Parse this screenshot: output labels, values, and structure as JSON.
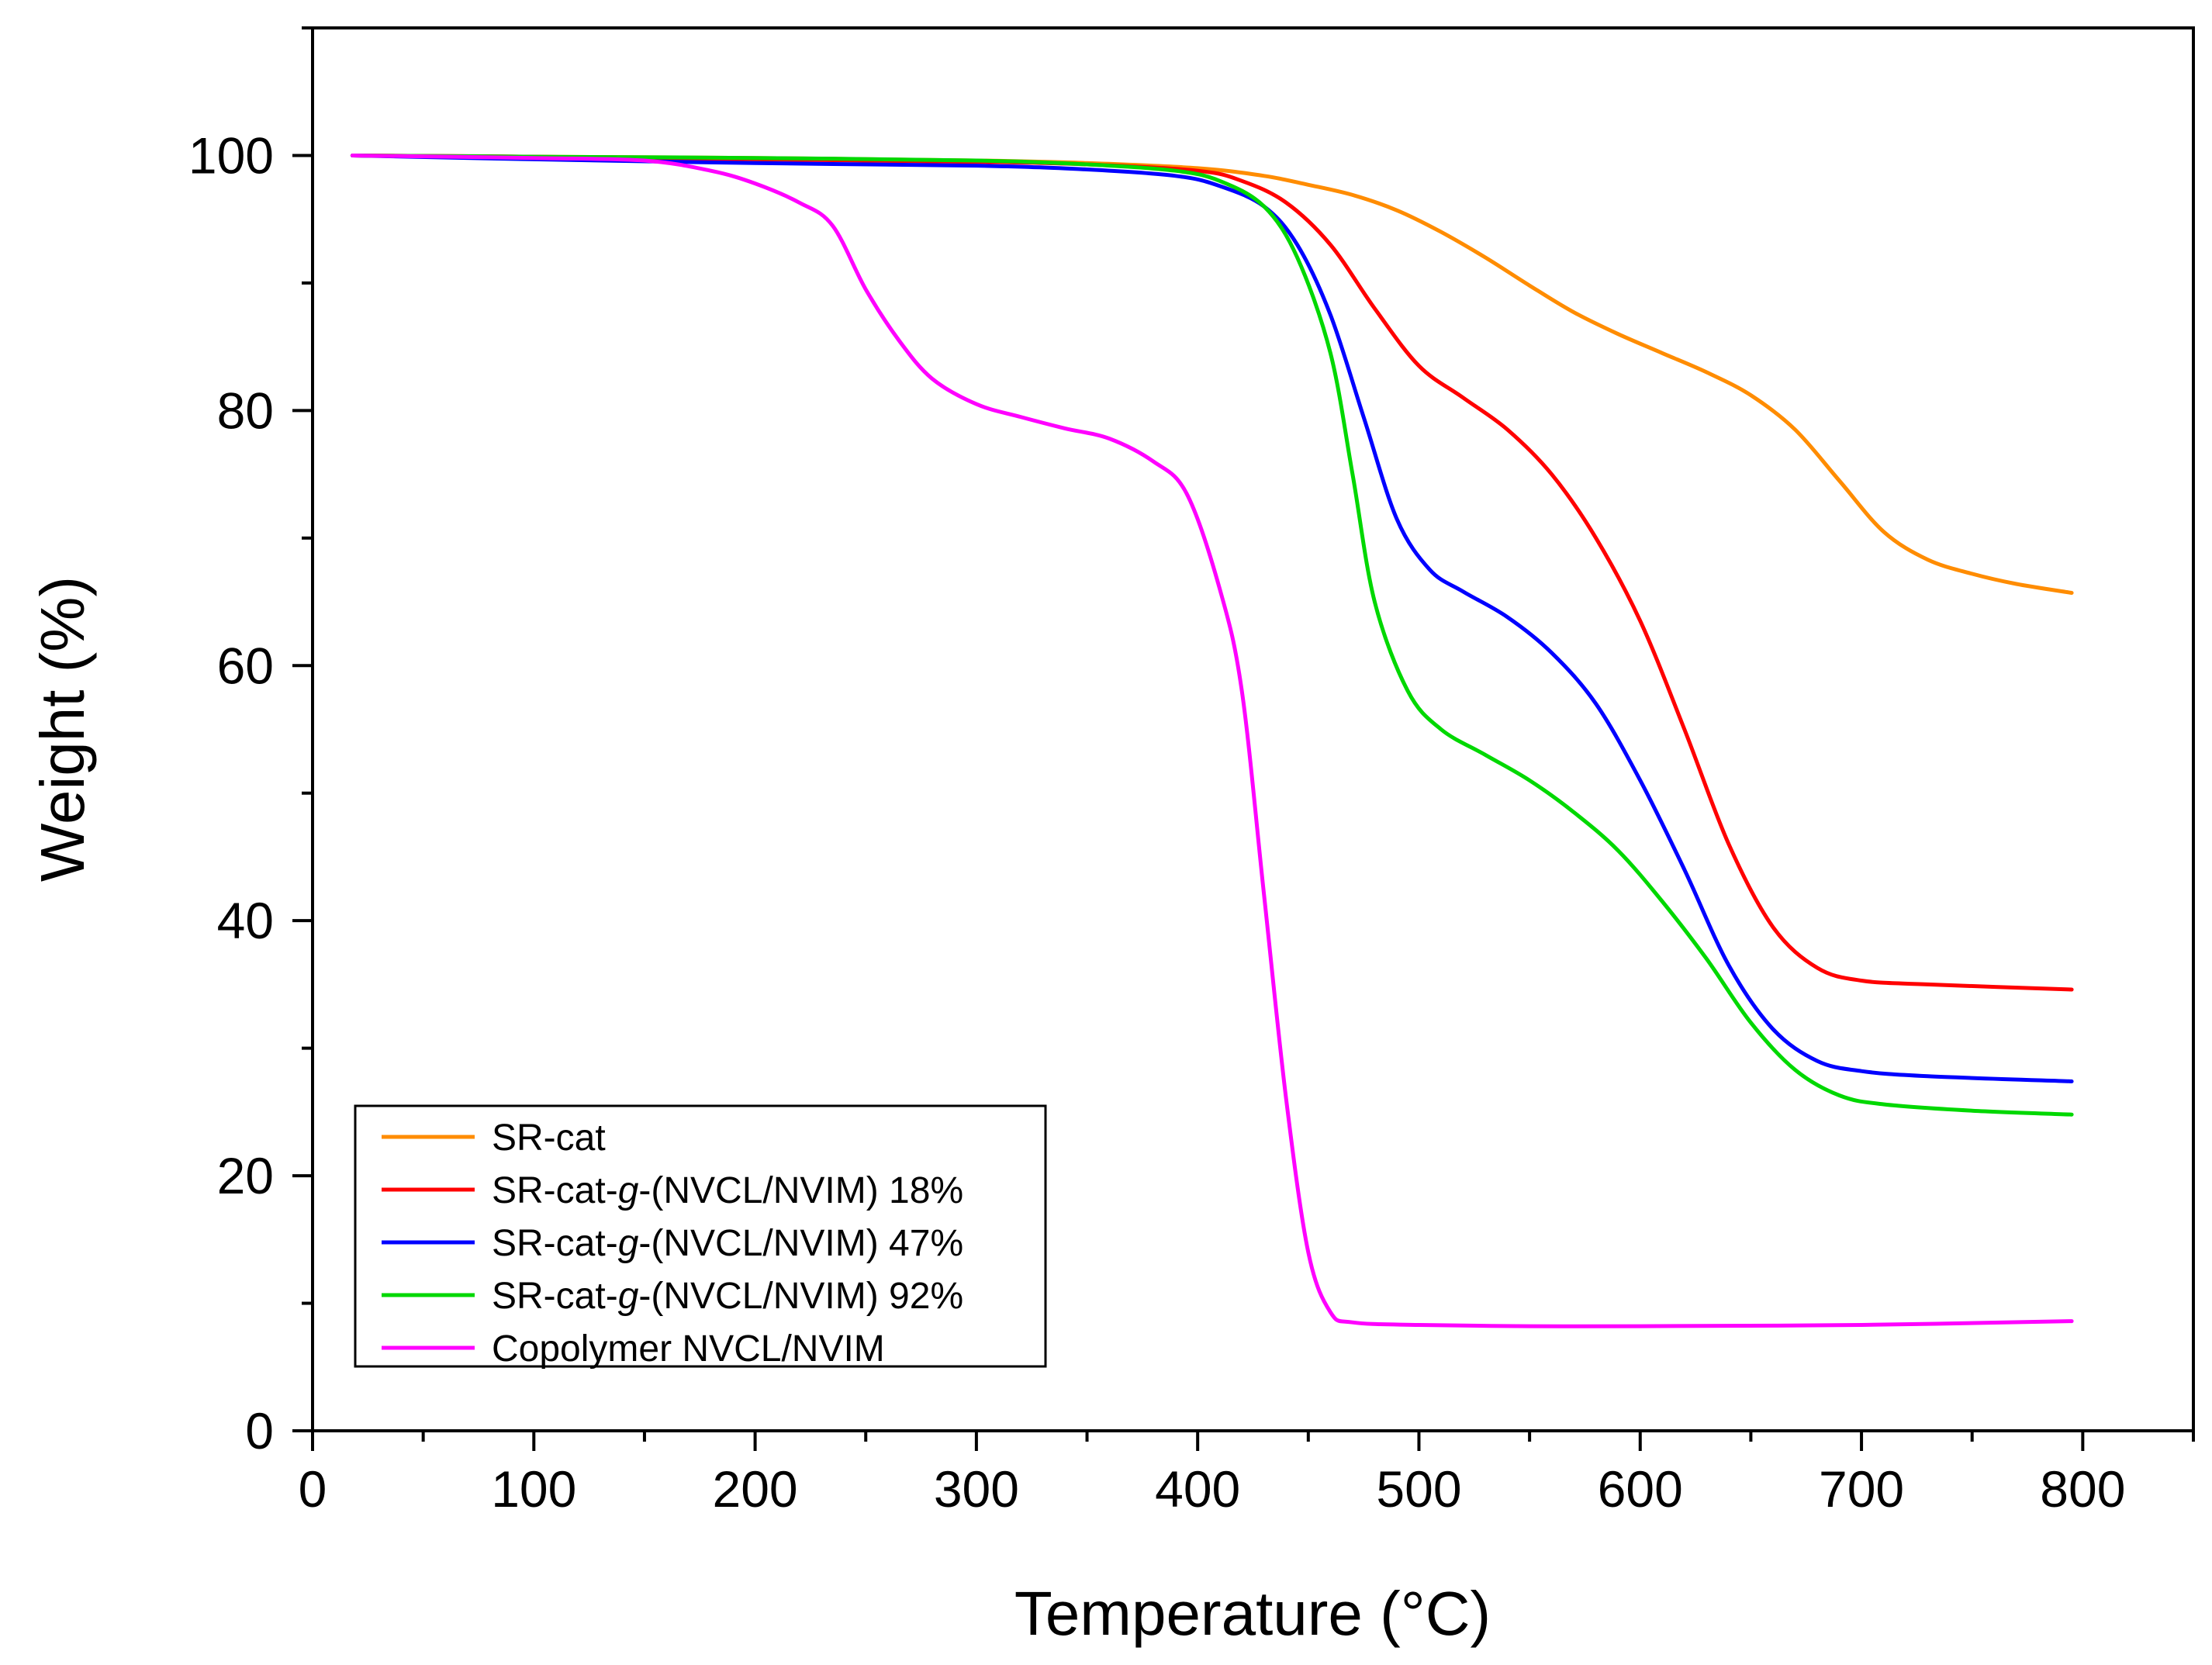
{
  "chart_data": {
    "type": "line",
    "title": "",
    "xlabel": "Temperature (°C)",
    "ylabel": "Weight (%)",
    "xlim": [
      0,
      850
    ],
    "ylim": [
      0,
      110
    ],
    "x_ticks": [
      0,
      100,
      200,
      300,
      400,
      500,
      600,
      700,
      800
    ],
    "y_ticks": [
      0,
      20,
      40,
      60,
      80,
      100
    ],
    "x_minor_step": 50,
    "y_minor_step": 10,
    "grid": false,
    "legend_position": "bottom-left",
    "series": [
      {
        "name": "SR-cat",
        "label_parts": [
          {
            "text": "SR-cat",
            "italic": false
          }
        ],
        "color": "#ff8c00",
        "points": [
          [
            18,
            100
          ],
          [
            100,
            99.9
          ],
          [
            200,
            99.8
          ],
          [
            300,
            99.6
          ],
          [
            350,
            99.4
          ],
          [
            400,
            99.0
          ],
          [
            430,
            98.4
          ],
          [
            450,
            97.7
          ],
          [
            470,
            96.9
          ],
          [
            490,
            95.7
          ],
          [
            510,
            94.0
          ],
          [
            530,
            92.0
          ],
          [
            550,
            89.8
          ],
          [
            570,
            87.7
          ],
          [
            590,
            86.0
          ],
          [
            610,
            84.5
          ],
          [
            630,
            83.0
          ],
          [
            650,
            81.2
          ],
          [
            670,
            78.5
          ],
          [
            690,
            74.5
          ],
          [
            710,
            70.5
          ],
          [
            730,
            68.3
          ],
          [
            750,
            67.2
          ],
          [
            770,
            66.4
          ],
          [
            795,
            65.7
          ]
        ]
      },
      {
        "name": "SR-cat-g-(NVCL/NVIM) 18%",
        "label_parts": [
          {
            "text": "SR-cat-",
            "italic": false
          },
          {
            "text": "g",
            "italic": true
          },
          {
            "text": "-(NVCL/NVIM) 18%",
            "italic": false
          }
        ],
        "color": "#ff0000",
        "points": [
          [
            18,
            100
          ],
          [
            100,
            99.9
          ],
          [
            200,
            99.7
          ],
          [
            300,
            99.5
          ],
          [
            350,
            99.3
          ],
          [
            400,
            98.8
          ],
          [
            420,
            98.0
          ],
          [
            440,
            96.3
          ],
          [
            460,
            93.0
          ],
          [
            480,
            88.0
          ],
          [
            500,
            83.5
          ],
          [
            520,
            81.0
          ],
          [
            540,
            78.5
          ],
          [
            560,
            75.0
          ],
          [
            580,
            70.0
          ],
          [
            600,
            63.5
          ],
          [
            620,
            55.0
          ],
          [
            640,
            46.0
          ],
          [
            660,
            39.5
          ],
          [
            680,
            36.3
          ],
          [
            700,
            35.3
          ],
          [
            730,
            35.0
          ],
          [
            795,
            34.6
          ]
        ]
      },
      {
        "name": "SR-cat-g-(NVCL/NVIM) 47%",
        "label_parts": [
          {
            "text": "SR-cat-",
            "italic": false
          },
          {
            "text": "g",
            "italic": true
          },
          {
            "text": "-(NVCL/NVIM) 47%",
            "italic": false
          }
        ],
        "color": "#0000ff",
        "points": [
          [
            18,
            100
          ],
          [
            100,
            99.7
          ],
          [
            200,
            99.4
          ],
          [
            300,
            99.2
          ],
          [
            350,
            98.9
          ],
          [
            390,
            98.4
          ],
          [
            410,
            97.6
          ],
          [
            430,
            96.0
          ],
          [
            445,
            93.0
          ],
          [
            460,
            87.5
          ],
          [
            475,
            79.5
          ],
          [
            490,
            71.5
          ],
          [
            505,
            67.5
          ],
          [
            520,
            65.8
          ],
          [
            540,
            63.8
          ],
          [
            560,
            61.0
          ],
          [
            580,
            57.0
          ],
          [
            600,
            51.0
          ],
          [
            620,
            44.0
          ],
          [
            640,
            36.5
          ],
          [
            660,
            31.5
          ],
          [
            680,
            29.0
          ],
          [
            700,
            28.2
          ],
          [
            730,
            27.8
          ],
          [
            795,
            27.4
          ]
        ]
      },
      {
        "name": "SR-cat-g-(NVCL/NVIM) 92%",
        "label_parts": [
          {
            "text": "SR-cat-",
            "italic": false
          },
          {
            "text": "g",
            "italic": true
          },
          {
            "text": "-(NVCL/NVIM) 92%",
            "italic": false
          }
        ],
        "color": "#00d800",
        "points": [
          [
            18,
            100
          ],
          [
            100,
            99.9
          ],
          [
            200,
            99.8
          ],
          [
            300,
            99.6
          ],
          [
            350,
            99.3
          ],
          [
            390,
            98.8
          ],
          [
            410,
            98.0
          ],
          [
            430,
            96.0
          ],
          [
            445,
            92.0
          ],
          [
            460,
            84.5
          ],
          [
            470,
            75.0
          ],
          [
            480,
            65.0
          ],
          [
            495,
            58.0
          ],
          [
            510,
            55.0
          ],
          [
            530,
            53.0
          ],
          [
            550,
            51.0
          ],
          [
            570,
            48.5
          ],
          [
            590,
            45.5
          ],
          [
            610,
            41.5
          ],
          [
            630,
            37.0
          ],
          [
            650,
            32.0
          ],
          [
            670,
            28.3
          ],
          [
            690,
            26.3
          ],
          [
            710,
            25.6
          ],
          [
            750,
            25.1
          ],
          [
            795,
            24.8
          ]
        ]
      },
      {
        "name": "Copolymer NVCL/NVIM",
        "label_parts": [
          {
            "text": "Copolymer NVCL/NVIM",
            "italic": false
          }
        ],
        "color": "#ff00ff",
        "points": [
          [
            18,
            100
          ],
          [
            100,
            99.8
          ],
          [
            150,
            99.6
          ],
          [
            180,
            98.8
          ],
          [
            200,
            97.8
          ],
          [
            220,
            96.3
          ],
          [
            235,
            94.5
          ],
          [
            250,
            89.5
          ],
          [
            265,
            85.5
          ],
          [
            280,
            82.5
          ],
          [
            300,
            80.5
          ],
          [
            320,
            79.5
          ],
          [
            340,
            78.6
          ],
          [
            360,
            77.8
          ],
          [
            380,
            76.0
          ],
          [
            395,
            73.5
          ],
          [
            410,
            66.0
          ],
          [
            420,
            58.0
          ],
          [
            430,
            42.0
          ],
          [
            440,
            26.0
          ],
          [
            450,
            14.0
          ],
          [
            460,
            9.3
          ],
          [
            470,
            8.5
          ],
          [
            500,
            8.3
          ],
          [
            550,
            8.2
          ],
          [
            600,
            8.2
          ],
          [
            700,
            8.3
          ],
          [
            795,
            8.6
          ]
        ]
      }
    ]
  }
}
